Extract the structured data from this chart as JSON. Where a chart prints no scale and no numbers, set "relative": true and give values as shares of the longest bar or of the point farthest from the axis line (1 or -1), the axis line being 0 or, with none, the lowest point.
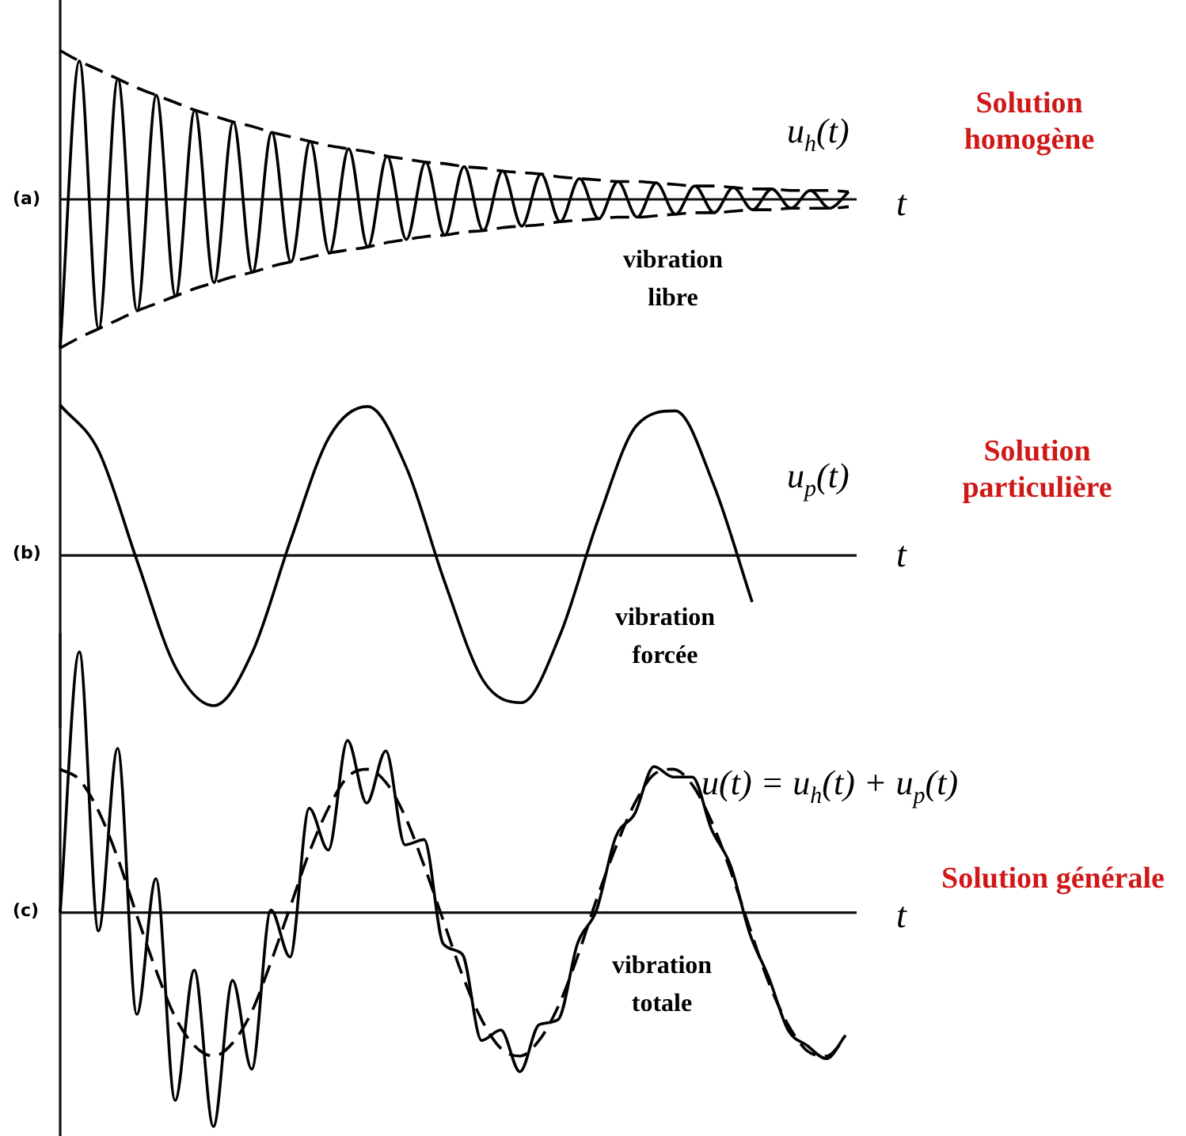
{
  "chart_data": [
    {
      "type": "line",
      "xlabel": "t",
      "relative": true,
      "legend": false,
      "grid": false,
      "tick_labels": false,
      "marker": "none",
      "annotations": [
        "(a)",
        "vibration libre",
        "Solution homogène"
      ],
      "categories": [
        null,
        null,
        null,
        null,
        null,
        null,
        null,
        null,
        null,
        null,
        null,
        null,
        null,
        null,
        null,
        null,
        null,
        null,
        null,
        null,
        null,
        null,
        null,
        null,
        null,
        null,
        null,
        null,
        null,
        null,
        null,
        null,
        null,
        null,
        null,
        null,
        null,
        null,
        null,
        null,
        null,
        null
      ],
      "series": [
        {
          "name": "u$_{h}$(t)",
          "color": "#000000",
          "line_style": "solid",
          "values": [
            -1,
            0.93,
            -0.87,
            0.81,
            -0.75,
            0.7,
            -0.65,
            0.6,
            -0.56,
            0.52,
            -0.49,
            0.45,
            -0.42,
            0.39,
            -0.36,
            0.34,
            -0.32,
            0.29,
            -0.27,
            0.25,
            -0.24,
            0.22,
            -0.21,
            0.19,
            -0.18,
            0.17,
            -0.15,
            0.14,
            -0.13,
            0.12,
            -0.12,
            0.11,
            -0.1,
            0.09,
            -0.09,
            0.08,
            -0.07,
            0.07,
            -0.06,
            0.06,
            -0.06,
            0.05
          ]
        },
        {
          "color": "#000000",
          "line_style": "dashed",
          "values": [
            1.0,
            0.93,
            0.87,
            0.81,
            0.75,
            0.7,
            0.65,
            0.6,
            0.56,
            0.52,
            0.49,
            0.45,
            0.42,
            0.39,
            0.36,
            0.34,
            0.32,
            0.29,
            0.27,
            0.25,
            0.24,
            0.22,
            0.21,
            0.19,
            0.18,
            0.17,
            0.15,
            0.14,
            0.13,
            0.12,
            0.12,
            0.11,
            0.1,
            0.09,
            0.09,
            0.08,
            0.07,
            0.07,
            0.06,
            0.06,
            0.06,
            0.05
          ]
        },
        {
          "color": "#000000",
          "line_style": "dashed",
          "values": [
            -1.0,
            -0.93,
            -0.87,
            -0.81,
            -0.75,
            -0.7,
            -0.65,
            -0.6,
            -0.56,
            -0.52,
            -0.49,
            -0.45,
            -0.42,
            -0.39,
            -0.36,
            -0.34,
            -0.32,
            -0.29,
            -0.27,
            -0.25,
            -0.24,
            -0.22,
            -0.21,
            -0.19,
            -0.18,
            -0.17,
            -0.15,
            -0.14,
            -0.13,
            -0.12,
            -0.12,
            -0.11,
            -0.1,
            -0.09,
            -0.09,
            -0.08,
            -0.07,
            -0.07,
            -0.06,
            -0.06,
            -0.06,
            -0.05
          ]
        }
      ]
    },
    {
      "type": "line",
      "xlabel": "t",
      "relative": true,
      "legend": false,
      "grid": false,
      "tick_labels": false,
      "marker": "none",
      "annotations": [
        "(b)",
        "vibration forcée",
        "Solution particulière"
      ],
      "categories": [
        null,
        null,
        null,
        null,
        null,
        null,
        null,
        null,
        null,
        null,
        null,
        null,
        null,
        null,
        null,
        null,
        null,
        null,
        null
      ],
      "series": [
        {
          "name": "u$_{p}$(t)",
          "color": "#000000",
          "line_style": "solid",
          "values": [
            1,
            0.695,
            -0.035,
            -0.743,
            -0.998,
            -0.643,
            0.105,
            0.788,
            0.99,
            0.588,
            -0.174,
            -0.829,
            -0.978,
            -0.53,
            0.242,
            0.866,
            0.961,
            0.469,
            -0.309
          ]
        }
      ]
    },
    {
      "type": "line",
      "xlabel": "t",
      "relative": true,
      "legend": false,
      "grid": false,
      "tick_labels": false,
      "marker": "none",
      "annotations": [
        "(c)",
        "vibration totale",
        "Solution générale"
      ],
      "categories": [
        null,
        null,
        null,
        null,
        null,
        null,
        null,
        null,
        null,
        null,
        null,
        null,
        null,
        null,
        null,
        null,
        null,
        null,
        null,
        null,
        null,
        null,
        null,
        null,
        null,
        null,
        null,
        null,
        null,
        null,
        null,
        null,
        null,
        null,
        null,
        null,
        null,
        null,
        null,
        null,
        null,
        null
      ],
      "series": [
        {
          "name": "u(t) = u$_{h}$(t) + u$_{p}$(t)",
          "color": "#000000",
          "line_style": "solid",
          "values": [
            0,
            1,
            -0.07,
            0.63,
            -0.39,
            0.13,
            -0.72,
            -0.22,
            -0.82,
            -0.26,
            -0.6,
            0.01,
            -0.17,
            0.4,
            0.24,
            0.66,
            0.42,
            0.62,
            0.26,
            0.28,
            -0.12,
            -0.16,
            -0.49,
            -0.45,
            -0.61,
            -0.43,
            -0.41,
            -0.12,
            0.01,
            0.29,
            0.38,
            0.56,
            0.52,
            0.52,
            0.32,
            0.18,
            -0.08,
            -0.25,
            -0.45,
            -0.51,
            -0.56,
            -0.47
          ]
        },
        {
          "color": "#000000",
          "line_style": "dashed",
          "values": [
            0.55,
            0.51,
            0.39,
            0.21,
            -0.01,
            -0.22,
            -0.4,
            -0.51,
            -0.55,
            -0.5,
            -0.38,
            -0.19,
            0.02,
            0.23,
            0.4,
            0.52,
            0.55,
            0.5,
            0.37,
            0.18,
            -0.03,
            -0.24,
            -0.41,
            -0.52,
            -0.55,
            -0.49,
            -0.36,
            -0.17,
            0.05,
            0.25,
            0.42,
            0.53,
            0.55,
            0.49,
            0.35,
            0.16,
            -0.06,
            -0.27,
            -0.43,
            -0.53,
            -0.55,
            -0.48
          ]
        }
      ]
    }
  ]
}
